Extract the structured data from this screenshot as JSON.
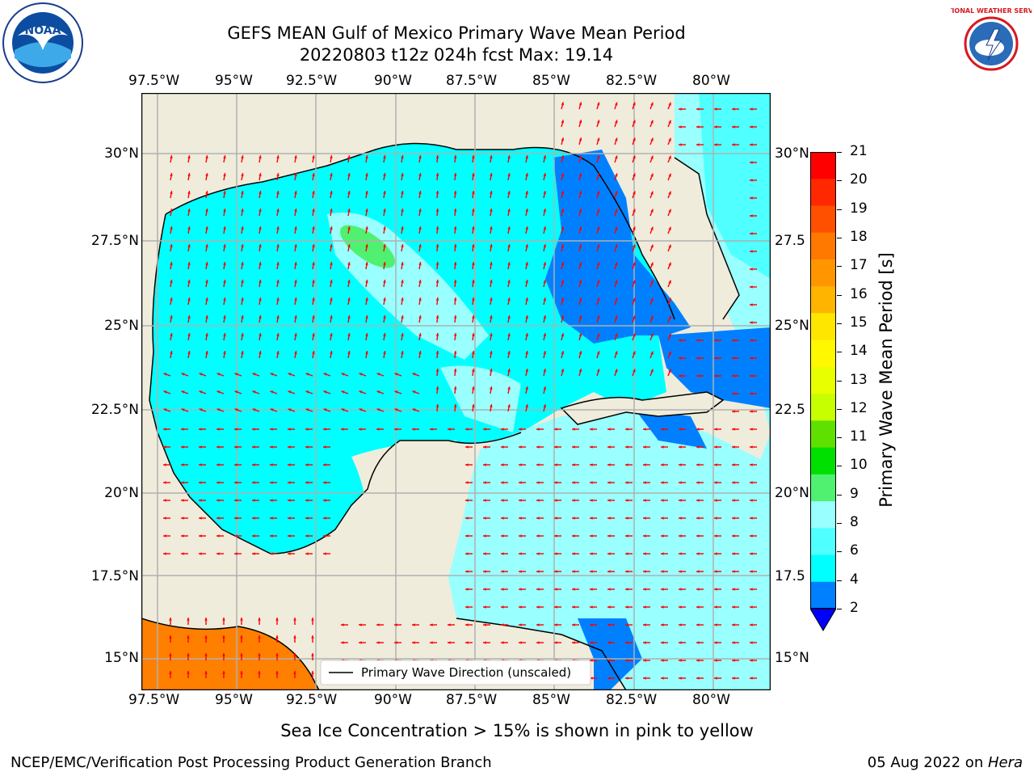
{
  "header": {
    "title_line1": "GEFS MEAN Gulf of Mexico Primary Wave Mean Period",
    "title_line2": "20220803 t12z 024h fcst   Max: 19.14"
  },
  "logos": {
    "left": "noaa-logo",
    "right": "nws-logo",
    "left_text": "NOAA",
    "right_text": "NATIONAL WEATHER SERVICE"
  },
  "map": {
    "lon_labels": [
      "97.5°W",
      "95°W",
      "92.5°W",
      "90°W",
      "87.5°W",
      "85°W",
      "82.5°W",
      "80°W"
    ],
    "lat_labels_left": [
      "30°N",
      "27.5°N",
      "25°N",
      "22.5°N",
      "20°N",
      "17.5°N",
      "15°N"
    ],
    "lat_labels_right": [
      "30°N",
      "27.5",
      "25°N",
      "22.5",
      "20°N",
      "17.5",
      "15°N"
    ],
    "legend_label": "Primary Wave Direction (unscaled)",
    "colors": {
      "land": "#efecdc",
      "ocean_shallow": "#00ffff",
      "ocean_blue": "#0080ff",
      "ocean_light": "#99ffff",
      "arrow": "#ff0000",
      "high_period": "#ff8000"
    }
  },
  "colorbar": {
    "label": "Primary Wave Mean Period [s]",
    "ticks": [
      "21",
      "20",
      "19",
      "18",
      "17",
      "16",
      "15",
      "14",
      "13",
      "12",
      "11",
      "10",
      "9",
      "8",
      "6",
      "4",
      "2"
    ],
    "colors": [
      "#ff0000",
      "#ff2800",
      "#ff5000",
      "#ff7800",
      "#ff9600",
      "#ffb400",
      "#ffe600",
      "#fff800",
      "#e8ff00",
      "#c8ff00",
      "#60e000",
      "#00e000",
      "#50f070",
      "#99ffff",
      "#50ffff",
      "#00ffff",
      "#0080ff"
    ],
    "under_color": "#0000ff"
  },
  "footer": {
    "note": "Sea Ice Concentration > 15% is shown in pink to yellow",
    "left": "NCEP/EMC/Verification Post Processing Product Generation Branch",
    "right_date": "05 Aug 2022 on ",
    "right_host": "Hera"
  }
}
